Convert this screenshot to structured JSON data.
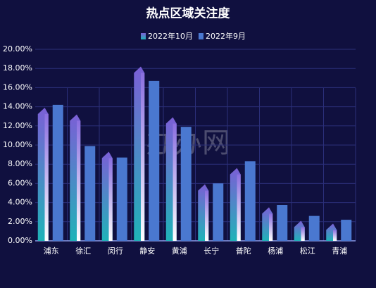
{
  "chart_data": {
    "type": "bar",
    "title": "热点区域关注度",
    "watermark": "办办网",
    "categories": [
      "浦东",
      "徐汇",
      "闵行",
      "静安",
      "黄浦",
      "长宁",
      "普陀",
      "杨浦",
      "松江",
      "青浦"
    ],
    "series": [
      {
        "name": "2022年10月",
        "color": "#7b5fd6",
        "values": [
          13.9,
          13.2,
          9.3,
          18.2,
          12.9,
          5.9,
          7.6,
          3.5,
          2.1,
          1.8
        ]
      },
      {
        "name": "2022年9月",
        "color": "#4a78d0",
        "values": [
          14.2,
          9.9,
          8.7,
          16.7,
          11.9,
          6.0,
          8.3,
          3.75,
          2.6,
          2.2
        ]
      }
    ],
    "ylim": [
      0,
      20
    ],
    "yticks": [
      {
        "value": 0,
        "label": "0.00%"
      },
      {
        "value": 2,
        "label": "2.00%"
      },
      {
        "value": 4,
        "label": "4.00%"
      },
      {
        "value": 6,
        "label": "6.00%"
      },
      {
        "value": 8,
        "label": "8.00%"
      },
      {
        "value": 10,
        "label": "10.00%"
      },
      {
        "value": 12,
        "label": "12.00%"
      },
      {
        "value": 14,
        "label": "14.00%"
      },
      {
        "value": 16,
        "label": "16.00%"
      },
      {
        "value": 18,
        "label": "18.00%"
      },
      {
        "value": 20,
        "label": "20.00%"
      }
    ],
    "grid": true
  }
}
